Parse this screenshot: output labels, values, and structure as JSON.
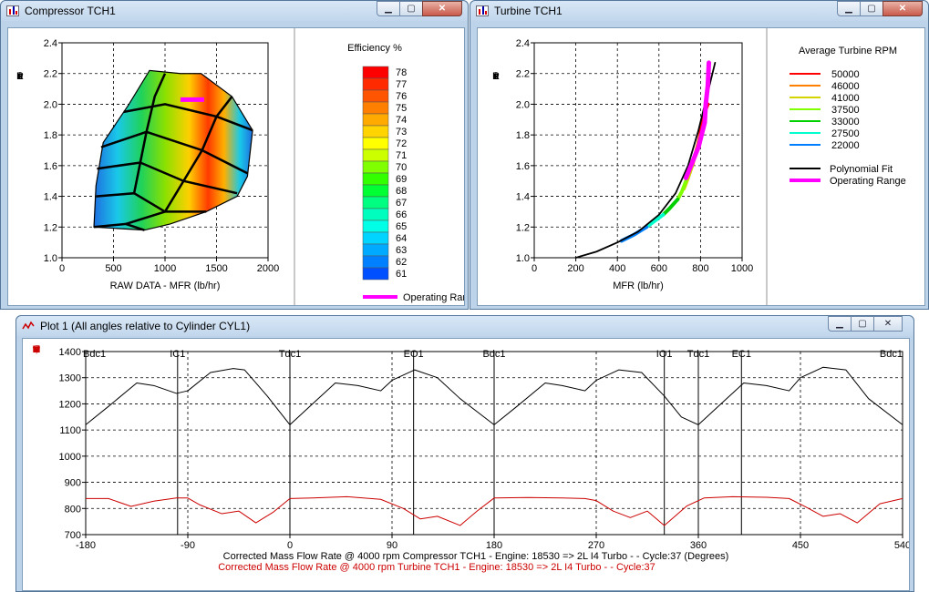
{
  "windows": {
    "compressor": {
      "title": "Compressor TCH1",
      "y_label_letters": [
        "P",
        "r",
        "e",
        "s",
        "s",
        "u",
        "r",
        "e",
        "",
        "R",
        "a",
        "t",
        "i",
        "o"
      ],
      "x_label": "RAW DATA  -  MFR  (lb/hr)",
      "x_ticks": [
        "0",
        "500",
        "1000",
        "1500",
        "2000"
      ],
      "y_ticks": [
        "1.0",
        "1.2",
        "1.4",
        "1.6",
        "1.8",
        "2.0",
        "2.2",
        "2.4"
      ],
      "legend_title": "Efficiency %",
      "legend_levels": [
        "78",
        "77",
        "76",
        "75",
        "74",
        "73",
        "72",
        "71",
        "70",
        "69",
        "68",
        "67",
        "66",
        "65",
        "64",
        "63",
        "62",
        "61"
      ],
      "legend_colors": [
        "#ff0000",
        "#ff2a00",
        "#ff5500",
        "#ff7f00",
        "#ffaa00",
        "#ffd400",
        "#ffff00",
        "#ccff00",
        "#80ff00",
        "#33ff00",
        "#00ff33",
        "#00ff80",
        "#00ffbf",
        "#00ffe6",
        "#00d4ff",
        "#00aaff",
        "#0080ff",
        "#0050ff"
      ],
      "operating_label": "Operating Rar"
    },
    "turbine": {
      "title": "Turbine TCH1",
      "y_label_letters": [
        "P",
        "r",
        "e",
        "s",
        "s",
        "u",
        "r",
        "e",
        "",
        "R",
        "a",
        "t",
        "i",
        "o"
      ],
      "x_label": "MFR  (lb/hr)",
      "x_ticks": [
        "0",
        "200",
        "400",
        "600",
        "800",
        "1000"
      ],
      "y_ticks": [
        "1.0",
        "1.2",
        "1.4",
        "1.6",
        "1.8",
        "2.0",
        "2.2",
        "2.4"
      ],
      "legend_title": "Average Turbine RPM",
      "rpm_items": [
        {
          "label": "50000",
          "color": "#ff0000"
        },
        {
          "label": "46000",
          "color": "#ff8000"
        },
        {
          "label": "41000",
          "color": "#d4d400"
        },
        {
          "label": "37500",
          "color": "#80ff00"
        },
        {
          "label": "33000",
          "color": "#00d000"
        },
        {
          "label": "27500",
          "color": "#00ffcc"
        },
        {
          "label": "22000",
          "color": "#0080ff"
        }
      ],
      "fit_label": "Polynomial Fit",
      "fit_color": "#000000",
      "operating_label": "Operating Range",
      "operating_color": "#ff00ff"
    },
    "plot1": {
      "title": "Plot 1 (All angles relative to Cylinder CYL1)",
      "y_label_letters": [
        "c",
        "t",
        "e",
        "d",
        "",
        "M",
        "a",
        "s",
        "s",
        "",
        "F",
        "l",
        "o",
        "w",
        "",
        "R",
        "a",
        "t",
        "e",
        "",
        ","
      ],
      "x_ticks": [
        "-180",
        "-90",
        "0",
        "90",
        "180",
        "270",
        "360",
        "450",
        "540"
      ],
      "y_ticks": [
        "700",
        "800",
        "900",
        "1000",
        "1100",
        "1200",
        "1300",
        "1400"
      ],
      "events": [
        {
          "label": "Bdc1",
          "angle": -180
        },
        {
          "label": "IC1",
          "angle": -99
        },
        {
          "label": "Tdc1",
          "angle": 0
        },
        {
          "label": "EO1",
          "angle": 109
        },
        {
          "label": "Bdc1",
          "angle": 180
        },
        {
          "label": "IO1",
          "angle": 330
        },
        {
          "label": "Tdc1",
          "angle": 360
        },
        {
          "label": "EC1",
          "angle": 398
        },
        {
          "label": "Bdc1",
          "angle": 540
        }
      ],
      "caption_black": "Corrected Mass Flow Rate @ 4000 rpm Compressor TCH1 - Engine: 18530 => 2L I4 Turbo -  - Cycle:37 (Degrees)",
      "caption_red": "Corrected Mass Flow Rate @ 4000 rpm Turbine TCH1 - Engine: 18530 => 2L I4 Turbo -  - Cycle:37"
    }
  },
  "chart_data": [
    {
      "type": "heatmap",
      "title": "",
      "xlabel": "RAW DATA  -  MFR  (lb/hr)",
      "ylabel": "Pressure Ratio",
      "xlim": [
        0,
        2000
      ],
      "ylim": [
        1.0,
        2.4
      ],
      "map_outline": [
        [
          310,
          1.2
        ],
        [
          330,
          1.47
        ],
        [
          400,
          1.75
        ],
        [
          650,
          2.0
        ],
        [
          850,
          2.22
        ],
        [
          1150,
          2.2
        ],
        [
          1350,
          2.2
        ],
        [
          1650,
          2.05
        ],
        [
          1850,
          1.83
        ],
        [
          1800,
          1.53
        ],
        [
          1700,
          1.4
        ],
        [
          1400,
          1.3
        ],
        [
          1050,
          1.22
        ],
        [
          800,
          1.18
        ],
        [
          310,
          1.2
        ]
      ],
      "operating_range": [
        [
          1150,
          2.03
        ],
        [
          1380,
          2.03
        ]
      ],
      "efficiency_levels": [
        78,
        77,
        76,
        75,
        74,
        73,
        72,
        71,
        70,
        69,
        68,
        67,
        66,
        65,
        64,
        63,
        62,
        61
      ]
    },
    {
      "type": "line",
      "title": "",
      "xlabel": "MFR  (lb/hr)",
      "ylabel": "Pressure Ratio",
      "xlim": [
        0,
        1000
      ],
      "ylim": [
        1.0,
        2.4
      ],
      "series": [
        {
          "name": "Polynomial Fit",
          "x": [
            200,
            300,
            400,
            500,
            600,
            680,
            740,
            790,
            830,
            870
          ],
          "y": [
            1.0,
            1.04,
            1.1,
            1.17,
            1.28,
            1.42,
            1.6,
            1.83,
            2.05,
            2.27
          ]
        },
        {
          "name": "Operating Range",
          "x": [
            730,
            760,
            790,
            820,
            825,
            835,
            840
          ],
          "y": [
            1.52,
            1.62,
            1.72,
            1.88,
            2.0,
            2.12,
            2.27
          ]
        },
        {
          "name": "50000",
          "x": [
            790,
            805,
            820,
            835
          ],
          "y": [
            1.75,
            1.85,
            1.95,
            2.0
          ]
        },
        {
          "name": "46000",
          "x": [
            760,
            780,
            800
          ],
          "y": [
            1.6,
            1.7,
            1.8
          ]
        },
        {
          "name": "41000",
          "x": [
            720,
            740,
            760
          ],
          "y": [
            1.45,
            1.52,
            1.6
          ]
        },
        {
          "name": "37500",
          "x": [
            690,
            710,
            730
          ],
          "y": [
            1.38,
            1.43,
            1.5
          ]
        },
        {
          "name": "33000",
          "x": [
            620,
            650,
            690
          ],
          "y": [
            1.28,
            1.32,
            1.38
          ]
        },
        {
          "name": "27500",
          "x": [
            540,
            580,
            620
          ],
          "y": [
            1.2,
            1.24,
            1.28
          ]
        },
        {
          "name": "22000",
          "x": [
            420,
            480,
            540
          ],
          "y": [
            1.11,
            1.15,
            1.2
          ]
        }
      ]
    },
    {
      "type": "line",
      "title": "",
      "xlabel": "Degrees",
      "ylabel": "Corrected Mass Flow Rate",
      "xlim": [
        -180,
        540
      ],
      "ylim": [
        700,
        1400
      ],
      "x_ticks": [
        -180,
        -90,
        0,
        90,
        180,
        270,
        360,
        450,
        540
      ],
      "series": [
        {
          "name": "Corrected Mass Flow Rate @ 4000 rpm Compressor TCH1",
          "color": "#000000",
          "x": [
            -180,
            -160,
            -135,
            -120,
            -100,
            -90,
            -70,
            -50,
            -40,
            -20,
            0,
            20,
            40,
            60,
            80,
            90,
            110,
            130,
            150,
            180,
            200,
            225,
            240,
            260,
            270,
            290,
            310,
            330,
            345,
            360,
            380,
            400,
            420,
            440,
            450,
            470,
            490,
            510,
            540
          ],
          "y": [
            1120,
            1190,
            1280,
            1270,
            1240,
            1250,
            1320,
            1335,
            1330,
            1230,
            1120,
            1200,
            1280,
            1270,
            1250,
            1290,
            1330,
            1300,
            1220,
            1120,
            1190,
            1280,
            1270,
            1250,
            1290,
            1330,
            1320,
            1230,
            1150,
            1120,
            1200,
            1280,
            1270,
            1250,
            1300,
            1340,
            1330,
            1220,
            1120
          ]
        },
        {
          "name": "Corrected Mass Flow Rate @ 4000 rpm Turbine TCH1",
          "color": "#cc0000",
          "x": [
            -180,
            -160,
            -140,
            -120,
            -100,
            -90,
            -80,
            -60,
            -45,
            -30,
            -15,
            0,
            20,
            50,
            80,
            100,
            115,
            130,
            150,
            165,
            180,
            210,
            240,
            260,
            270,
            285,
            300,
            315,
            330,
            350,
            365,
            390,
            420,
            440,
            455,
            470,
            485,
            500,
            520,
            540
          ],
          "y": [
            838,
            838,
            808,
            828,
            840,
            840,
            815,
            780,
            790,
            745,
            785,
            838,
            840,
            845,
            835,
            800,
            760,
            770,
            735,
            790,
            840,
            842,
            840,
            838,
            830,
            790,
            765,
            790,
            735,
            810,
            840,
            845,
            843,
            838,
            805,
            770,
            780,
            745,
            818,
            838
          ]
        }
      ]
    }
  ]
}
